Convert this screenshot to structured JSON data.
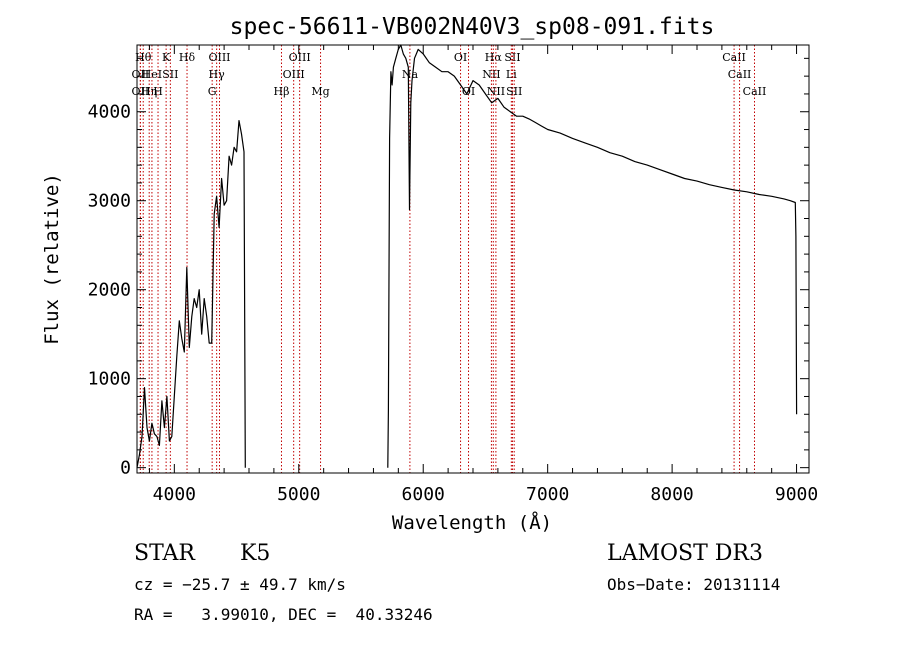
{
  "chart_data": {
    "type": "line",
    "title": "spec-56611-VB002N40V3_sp08-091.fits",
    "xlabel": "Wavelength (Å)",
    "ylabel": "Flux (relative)",
    "xlim": [
      3700,
      9100
    ],
    "ylim": [
      -60,
      4750
    ],
    "x_ticks": [
      4000,
      5000,
      6000,
      7000,
      8000,
      9000
    ],
    "y_ticks": [
      0,
      1000,
      2000,
      3000,
      4000
    ],
    "grid": false,
    "series": [
      {
        "name": "spectrum",
        "segments": [
          {
            "x": [
              3700,
              3720,
              3740,
              3760,
              3780,
              3800,
              3820,
              3840,
              3860,
              3880,
              3900,
              3920,
              3940,
              3960,
              3980,
              4000,
              4020,
              4040,
              4060,
              4080,
              4100,
              4120,
              4140,
              4160,
              4180,
              4200,
              4220,
              4240,
              4260,
              4280,
              4300,
              4320,
              4340,
              4360,
              4380,
              4400,
              4420,
              4440,
              4460,
              4480,
              4500,
              4520,
              4540,
              4560,
              4570
            ],
            "y": [
              0,
              150,
              350,
              900,
              450,
              300,
              500,
              380,
              350,
              250,
              750,
              450,
              800,
              300,
              350,
              800,
              1250,
              1650,
              1450,
              1300,
              2250,
              1350,
              1700,
              1900,
              1800,
              2000,
              1500,
              1900,
              1700,
              1400,
              1400,
              2850,
              3050,
              2700,
              3250,
              2950,
              3000,
              3500,
              3400,
              3600,
              3550,
              3900,
              3750,
              3550,
              0
            ]
          },
          {
            "x": [
              5715,
              5720,
              5730,
              5740,
              5750,
              5760,
              5780,
              5800,
              5820,
              5840,
              5860,
              5880,
              5890,
              5900,
              5910,
              5930,
              5960,
              6000,
              6050,
              6100,
              6150,
              6200,
              6250,
              6300,
              6350,
              6400,
              6450,
              6500,
              6550,
              6600,
              6650,
              6700,
              6750,
              6800,
              6850,
              6900,
              6950,
              7000,
              7100,
              7200,
              7300,
              7400,
              7500,
              7600,
              7700,
              7800,
              7900,
              8000,
              8100,
              8200,
              8300,
              8400,
              8500,
              8600,
              8700,
              8800,
              8900,
              8950,
              8990,
              8995,
              9000
            ],
            "y": [
              0,
              650,
              3700,
              4450,
              4300,
              4500,
              4600,
              4700,
              4750,
              4650,
              4600,
              4500,
              2900,
              4100,
              4350,
              4600,
              4700,
              4650,
              4550,
              4500,
              4450,
              4450,
              4400,
              4300,
              4200,
              4350,
              4300,
              4200,
              4100,
              4150,
              4050,
              4000,
              3950,
              3950,
              3920,
              3880,
              3840,
              3800,
              3760,
              3700,
              3650,
              3600,
              3540,
              3500,
              3440,
              3400,
              3350,
              3300,
              3250,
              3220,
              3180,
              3150,
              3120,
              3100,
              3070,
              3050,
              3020,
              3000,
              2980,
              2600,
              600
            ]
          }
        ]
      }
    ],
    "line_markers": [
      {
        "wavelength": 3750,
        "row": 1,
        "label": "Hθ"
      },
      {
        "wavelength": 3727,
        "row": 2,
        "label": "OII"
      },
      {
        "wavelength": 3727,
        "row": 3,
        "label": "OII"
      },
      {
        "wavelength": 3798,
        "row": 3,
        "label": "Hη"
      },
      {
        "wavelength": 3820,
        "row": 2,
        "label": "HeI"
      },
      {
        "wavelength": 3869,
        "row": 3,
        "label": "H"
      },
      {
        "wavelength": 3934,
        "row": 1,
        "label": "K"
      },
      {
        "wavelength": 3968,
        "row": 2,
        "label": "SII"
      },
      {
        "wavelength": 4102,
        "row": 1,
        "label": "Hδ"
      },
      {
        "wavelength": 4304,
        "row": 3,
        "label": "G"
      },
      {
        "wavelength": 4340,
        "row": 2,
        "label": "Hγ"
      },
      {
        "wavelength": 4363,
        "row": 1,
        "label": "OIII"
      },
      {
        "wavelength": 4861,
        "row": 3,
        "label": "Hβ"
      },
      {
        "wavelength": 4959,
        "row": 2,
        "label": "OIII"
      },
      {
        "wavelength": 5007,
        "row": 1,
        "label": "OIII"
      },
      {
        "wavelength": 5175,
        "row": 3,
        "label": "Mg"
      },
      {
        "wavelength": 5893,
        "row": 2,
        "label": "Na"
      },
      {
        "wavelength": 6300,
        "row": 1,
        "label": "OI"
      },
      {
        "wavelength": 6364,
        "row": 3,
        "label": "OI"
      },
      {
        "wavelength": 6548,
        "row": 2,
        "label": "NII"
      },
      {
        "wavelength": 6563,
        "row": 1,
        "label": "Hα"
      },
      {
        "wavelength": 6584,
        "row": 3,
        "label": "NII"
      },
      {
        "wavelength": 6708,
        "row": 2,
        "label": "Li"
      },
      {
        "wavelength": 6717,
        "row": 1,
        "label": "SII"
      },
      {
        "wavelength": 6731,
        "row": 3,
        "label": "SII"
      },
      {
        "wavelength": 8498,
        "row": 1,
        "label": "CaII"
      },
      {
        "wavelength": 8542,
        "row": 2,
        "label": "CaII"
      },
      {
        "wavelength": 8662,
        "row": 3,
        "label": "CaII"
      }
    ]
  },
  "info": {
    "object_class": "STAR",
    "subclass": "K5",
    "survey": "LAMOST DR3",
    "redshift": "cz = −25.7 ± 49.7 km/s",
    "obs_date": "Obs−Date: 20131114",
    "coords": "RA =   3.99010, DEC =  40.33246"
  },
  "colors": {
    "axis": "#000000",
    "spectrum": "#000000",
    "marker": "#c00000"
  }
}
